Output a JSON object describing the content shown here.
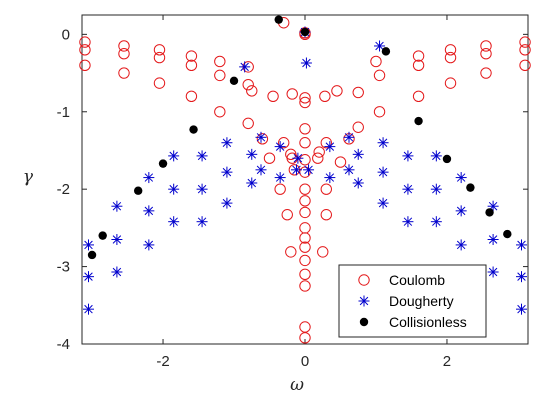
{
  "chart_data": {
    "type": "scatter",
    "xlabel": "ω",
    "ylabel": "γ",
    "xlim": [
      -3.14159,
      3.14159
    ],
    "ylim": [
      -4,
      0.25
    ],
    "x_ticks": [
      -2,
      0,
      2
    ],
    "x_tick_labels": [
      "-2",
      "0",
      "2"
    ],
    "y_ticks": [
      0,
      -1,
      -2,
      -3,
      -4
    ],
    "y_tick_labels": [
      "0",
      "-1",
      "-2",
      "-3",
      "-4"
    ],
    "grid": false,
    "legend_position": "bottom-right",
    "series": [
      {
        "name": "Coulomb",
        "marker": "circle-open",
        "color": "#e41a1c",
        "points": [
          [
            -3.1,
            -0.1
          ],
          [
            -3.1,
            -0.2
          ],
          [
            -3.1,
            -0.4
          ],
          [
            -2.55,
            -0.15
          ],
          [
            -2.55,
            -0.25
          ],
          [
            -2.55,
            -0.5
          ],
          [
            -2.05,
            -0.2
          ],
          [
            -2.05,
            -0.3
          ],
          [
            -2.05,
            -0.63
          ],
          [
            -1.6,
            -0.28
          ],
          [
            -1.6,
            -0.4
          ],
          [
            -1.6,
            -0.8
          ],
          [
            -1.2,
            -0.35
          ],
          [
            -1.2,
            -0.53
          ],
          [
            -1.2,
            -1.0
          ],
          [
            -0.8,
            -0.42
          ],
          [
            -0.8,
            -0.65
          ],
          [
            -0.8,
            -1.15
          ],
          [
            -0.75,
            -0.73
          ],
          [
            -0.6,
            -1.35
          ],
          [
            -0.5,
            -1.6
          ],
          [
            -0.45,
            -0.8
          ],
          [
            -0.3,
            -1.4
          ],
          [
            -0.2,
            -1.55
          ],
          [
            -0.15,
            -1.75
          ],
          [
            -0.35,
            -2.0
          ],
          [
            -0.25,
            -2.33
          ],
          [
            -0.2,
            -2.81
          ],
          [
            -0.3,
            0.15
          ],
          [
            -0.18,
            -0.77
          ],
          [
            -0.18,
            -1.6
          ],
          [
            0,
            -0.82
          ],
          [
            0,
            -0.88
          ],
          [
            0,
            -1.22
          ],
          [
            0,
            -1.4
          ],
          [
            0,
            -1.62
          ],
          [
            0,
            -1.78
          ],
          [
            0,
            -2.0
          ],
          [
            0,
            -2.15
          ],
          [
            0,
            -2.3
          ],
          [
            0,
            -2.5
          ],
          [
            0,
            -2.63
          ],
          [
            0,
            -2.75
          ],
          [
            0,
            -2.92
          ],
          [
            0,
            -3.1
          ],
          [
            0,
            -3.25
          ],
          [
            0,
            -3.78
          ],
          [
            0,
            -3.92
          ],
          [
            0,
            0.0
          ],
          [
            0,
            0.02
          ],
          [
            0.18,
            -1.6
          ],
          [
            0.3,
            -2.0
          ],
          [
            0.3,
            -2.33
          ],
          [
            0.25,
            -2.81
          ],
          [
            0.28,
            -0.8
          ],
          [
            0.45,
            -0.73
          ],
          [
            0.5,
            -1.65
          ],
          [
            0.3,
            -1.4
          ],
          [
            0.2,
            -1.52
          ],
          [
            0.75,
            -0.75
          ],
          [
            0.75,
            -1.2
          ],
          [
            0.62,
            -1.35
          ],
          [
            1.0,
            -0.35
          ],
          [
            1.05,
            -0.53
          ],
          [
            1.05,
            -1.0
          ],
          [
            1.6,
            -0.28
          ],
          [
            1.6,
            -0.4
          ],
          [
            1.6,
            -0.8
          ],
          [
            2.05,
            -0.2
          ],
          [
            2.05,
            -0.3
          ],
          [
            2.05,
            -0.63
          ],
          [
            2.55,
            -0.15
          ],
          [
            2.55,
            -0.25
          ],
          [
            2.55,
            -0.5
          ],
          [
            3.1,
            -0.1
          ],
          [
            3.1,
            -0.2
          ],
          [
            3.1,
            -0.4
          ]
        ]
      },
      {
        "name": "Dougherty",
        "marker": "asterisk",
        "color": "#0000cd",
        "points": [
          [
            -3.05,
            -2.72
          ],
          [
            -3.05,
            -3.13
          ],
          [
            -3.05,
            -3.55
          ],
          [
            -2.65,
            -2.22
          ],
          [
            -2.65,
            -2.65
          ],
          [
            -2.65,
            -3.07
          ],
          [
            -2.2,
            -1.85
          ],
          [
            -2.2,
            -2.28
          ],
          [
            -2.2,
            -2.72
          ],
          [
            -1.85,
            -1.57
          ],
          [
            -1.85,
            -2.0
          ],
          [
            -1.85,
            -2.42
          ],
          [
            -1.45,
            -1.57
          ],
          [
            -1.45,
            -2.0
          ],
          [
            -1.45,
            -2.42
          ],
          [
            -1.1,
            -1.4
          ],
          [
            -1.1,
            -1.78
          ],
          [
            -1.1,
            -2.18
          ],
          [
            -0.85,
            -0.42
          ],
          [
            -0.75,
            -1.55
          ],
          [
            -0.75,
            -1.92
          ],
          [
            -0.62,
            -1.33
          ],
          [
            -0.62,
            -1.75
          ],
          [
            -0.35,
            -1.45
          ],
          [
            -0.35,
            -1.85
          ],
          [
            -0.1,
            -1.6
          ],
          [
            -0.12,
            -1.75
          ],
          [
            0,
            0.03
          ],
          [
            0.02,
            -0.37
          ],
          [
            0.05,
            -1.75
          ],
          [
            0.35,
            -1.45
          ],
          [
            0.35,
            -1.85
          ],
          [
            0.62,
            -1.33
          ],
          [
            0.62,
            -1.75
          ],
          [
            0.75,
            -1.55
          ],
          [
            0.75,
            -1.92
          ],
          [
            1.1,
            -1.4
          ],
          [
            1.1,
            -1.78
          ],
          [
            1.1,
            -2.18
          ],
          [
            1.05,
            -0.15
          ],
          [
            1.45,
            -1.57
          ],
          [
            1.45,
            -2.0
          ],
          [
            1.45,
            -2.42
          ],
          [
            1.85,
            -1.57
          ],
          [
            1.85,
            -2.0
          ],
          [
            1.85,
            -2.42
          ],
          [
            2.2,
            -1.85
          ],
          [
            2.2,
            -2.28
          ],
          [
            2.2,
            -2.72
          ],
          [
            2.65,
            -2.22
          ],
          [
            2.65,
            -2.65
          ],
          [
            2.65,
            -3.07
          ],
          [
            3.05,
            -2.72
          ],
          [
            3.05,
            -3.13
          ],
          [
            3.05,
            -3.55
          ]
        ]
      },
      {
        "name": "Collisionless",
        "marker": "dot",
        "color": "#000000",
        "points": [
          [
            -3.0,
            -2.85
          ],
          [
            -2.85,
            -2.6
          ],
          [
            -2.35,
            -2.02
          ],
          [
            -2.0,
            -1.67
          ],
          [
            -1.57,
            -1.23
          ],
          [
            -1.0,
            -0.6
          ],
          [
            -0.37,
            0.19
          ],
          [
            0,
            0.03
          ],
          [
            1.14,
            -0.22
          ],
          [
            1.6,
            -1.12
          ],
          [
            2.0,
            -1.61
          ],
          [
            2.33,
            -1.98
          ],
          [
            2.6,
            -2.3
          ],
          [
            2.85,
            -2.58
          ]
        ]
      }
    ]
  }
}
